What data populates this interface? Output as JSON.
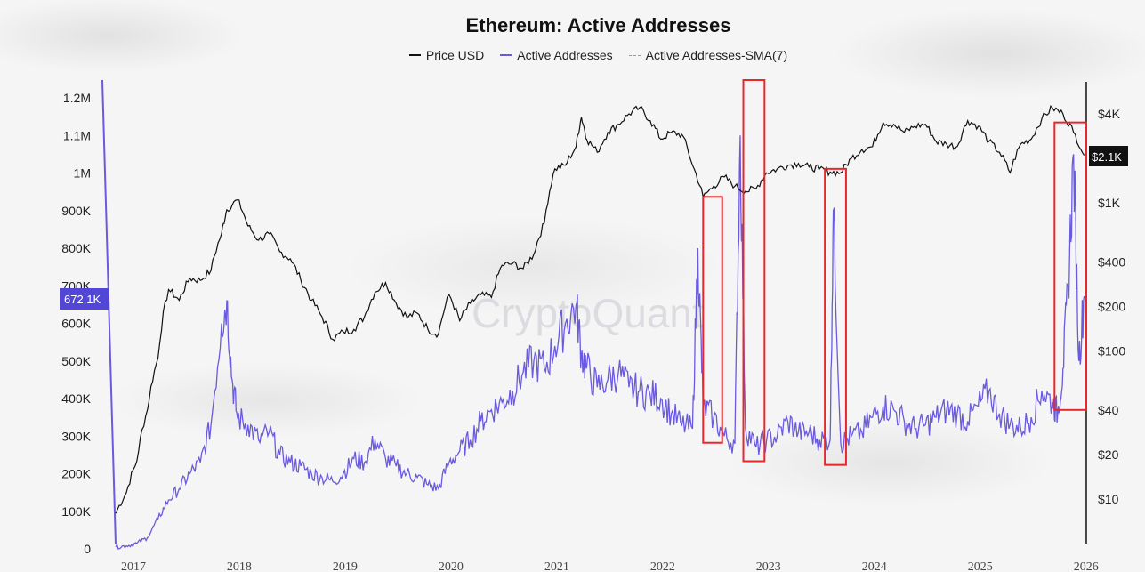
{
  "chart_data": {
    "type": "line",
    "title": "Ethereum: Active Addresses",
    "legend": [
      "Price USD",
      "Active Addresses",
      "Active Addresses-SMA(7)"
    ],
    "watermark": "CryptoQuant",
    "x_ticks": [
      "2017",
      "2018",
      "2019",
      "2020",
      "2021",
      "2022",
      "2023",
      "2024",
      "2025",
      "2026"
    ],
    "y_left": {
      "ticks": [
        "0",
        "100K",
        "200K",
        "300K",
        "400K",
        "500K",
        "600K",
        "700K",
        "800K",
        "900K",
        "1M",
        "1.1M",
        "1.2M"
      ],
      "ylim": [
        0,
        1200000
      ],
      "current_value_label": "672.1K",
      "current_value": 672100
    },
    "y_right": {
      "scale": "log",
      "ticks": [
        "$10",
        "$20",
        "$40",
        "$100",
        "$200",
        "$400",
        "$1K",
        "$4K"
      ],
      "ylim": [
        10,
        4000
      ],
      "current_value_label": "$2.1K",
      "current_value": 2100
    },
    "series": [
      {
        "name": "Price USD",
        "axis": "right",
        "color": "#111111",
        "x": [
          2016.95,
          2017.05,
          2017.15,
          2017.25,
          2017.35,
          2017.45,
          2017.55,
          2017.65,
          2017.75,
          2017.85,
          2017.95,
          2018.0,
          2018.1,
          2018.2,
          2018.3,
          2018.4,
          2018.5,
          2018.6,
          2018.7,
          2018.8,
          2018.9,
          2019.0,
          2019.1,
          2019.2,
          2019.3,
          2019.4,
          2019.5,
          2019.6,
          2019.7,
          2019.8,
          2019.9,
          2020.0,
          2020.1,
          2020.2,
          2020.3,
          2020.4,
          2020.5,
          2020.6,
          2020.7,
          2020.8,
          2020.9,
          2021.0,
          2021.1,
          2021.2,
          2021.3,
          2021.35,
          2021.4,
          2021.5,
          2021.6,
          2021.7,
          2021.8,
          2021.9,
          2022.0,
          2022.1,
          2022.2,
          2022.3,
          2022.4,
          2022.5,
          2022.6,
          2022.7,
          2022.8,
          2022.9,
          2023.0,
          2023.1,
          2023.2,
          2023.3,
          2023.4,
          2023.5,
          2023.6,
          2023.7,
          2023.8,
          2023.9,
          2024.0,
          2024.1,
          2024.2,
          2024.3,
          2024.4,
          2024.5,
          2024.6,
          2024.7,
          2024.8,
          2024.9,
          2025.0,
          2025.1,
          2025.2,
          2025.3,
          2025.4,
          2025.5,
          2025.6,
          2025.7,
          2025.8,
          2025.9,
          2026.0,
          2026.1
        ],
        "values": [
          8,
          11,
          18,
          40,
          90,
          260,
          220,
          310,
          300,
          350,
          620,
          900,
          1050,
          700,
          560,
          620,
          470,
          420,
          300,
          220,
          170,
          120,
          135,
          140,
          170,
          250,
          290,
          210,
          170,
          180,
          140,
          130,
          240,
          160,
          210,
          240,
          230,
          380,
          390,
          360,
          450,
          730,
          1700,
          1800,
          2400,
          3800,
          2700,
          2200,
          3000,
          3400,
          4000,
          4400,
          3600,
          2700,
          3000,
          2900,
          1800,
          1100,
          1300,
          1500,
          1300,
          1200,
          1250,
          1600,
          1700,
          1800,
          1850,
          1750,
          1700,
          1620,
          1600,
          2000,
          2300,
          2400,
          3500,
          3400,
          3000,
          3300,
          3400,
          2600,
          2500,
          2400,
          3600,
          3300,
          2600,
          2200,
          1600,
          2500,
          2700,
          3700,
          4400,
          4000,
          3000,
          2100
        ]
      },
      {
        "name": "Active Addresses",
        "axis": "left",
        "color": "#6a5ae0",
        "x": [
          2016.95,
          2017.05,
          2017.15,
          2017.25,
          2017.35,
          2017.45,
          2017.55,
          2017.65,
          2017.75,
          2017.85,
          2017.95,
          2018.0,
          2018.05,
          2018.1,
          2018.2,
          2018.3,
          2018.4,
          2018.5,
          2018.6,
          2018.7,
          2018.8,
          2018.9,
          2019.0,
          2019.1,
          2019.2,
          2019.3,
          2019.4,
          2019.5,
          2019.6,
          2019.7,
          2019.8,
          2019.9,
          2020.0,
          2020.1,
          2020.2,
          2020.3,
          2020.4,
          2020.5,
          2020.6,
          2020.7,
          2020.8,
          2020.9,
          2021.0,
          2021.1,
          2021.2,
          2021.3,
          2021.35,
          2021.4,
          2021.5,
          2021.6,
          2021.7,
          2021.8,
          2021.9,
          2022.0,
          2022.1,
          2022.2,
          2022.3,
          2022.4,
          2022.45,
          2022.5,
          2022.6,
          2022.7,
          2022.8,
          2022.85,
          2022.9,
          2023.0,
          2023.1,
          2023.2,
          2023.3,
          2023.4,
          2023.5,
          2023.6,
          2023.7,
          2023.73,
          2023.8,
          2023.9,
          2024.0,
          2024.1,
          2024.2,
          2024.3,
          2024.4,
          2024.5,
          2024.6,
          2024.7,
          2024.8,
          2024.9,
          2025.0,
          2025.1,
          2025.2,
          2025.3,
          2025.4,
          2025.5,
          2025.6,
          2025.7,
          2025.8,
          2025.85,
          2025.9,
          2025.95,
          2026.0,
          2026.05,
          2026.1
        ],
        "values": [
          5000,
          8000,
          15000,
          30000,
          80000,
          130000,
          160000,
          200000,
          230000,
          330000,
          600000,
          660000,
          450000,
          350000,
          330000,
          290000,
          310000,
          250000,
          230000,
          220000,
          200000,
          190000,
          180000,
          200000,
          240000,
          230000,
          290000,
          240000,
          220000,
          200000,
          190000,
          170000,
          160000,
          230000,
          260000,
          290000,
          340000,
          370000,
          390000,
          420000,
          470000,
          500000,
          480000,
          540000,
          600000,
          650000,
          520000,
          480000,
          430000,
          450000,
          470000,
          430000,
          420000,
          410000,
          400000,
          360000,
          330000,
          320000,
          800000,
          380000,
          350000,
          300000,
          280000,
          1100000,
          320000,
          270000,
          290000,
          300000,
          340000,
          310000,
          310000,
          290000,
          290000,
          900000,
          280000,
          300000,
          310000,
          350000,
          380000,
          370000,
          340000,
          320000,
          330000,
          350000,
          370000,
          360000,
          340000,
          380000,
          420000,
          360000,
          330000,
          320000,
          350000,
          420000,
          390000,
          360000,
          480000,
          700000,
          1050000,
          500000,
          672100
        ]
      }
    ],
    "annotations": [
      {
        "type": "highlight-box",
        "x_range": [
          2022.5,
          2022.68
        ],
        "y_range_right": [
          24,
          1100
        ]
      },
      {
        "type": "highlight-box",
        "x_range": [
          2022.88,
          2023.08
        ],
        "y_range_right": [
          18,
          9000
        ]
      },
      {
        "type": "highlight-box",
        "x_range": [
          2023.65,
          2023.85
        ],
        "y_range_right": [
          17,
          1700
        ]
      },
      {
        "type": "highlight-box",
        "x_range": [
          2025.82,
          2026.12
        ],
        "y_range_right": [
          40,
          3500
        ]
      }
    ]
  }
}
